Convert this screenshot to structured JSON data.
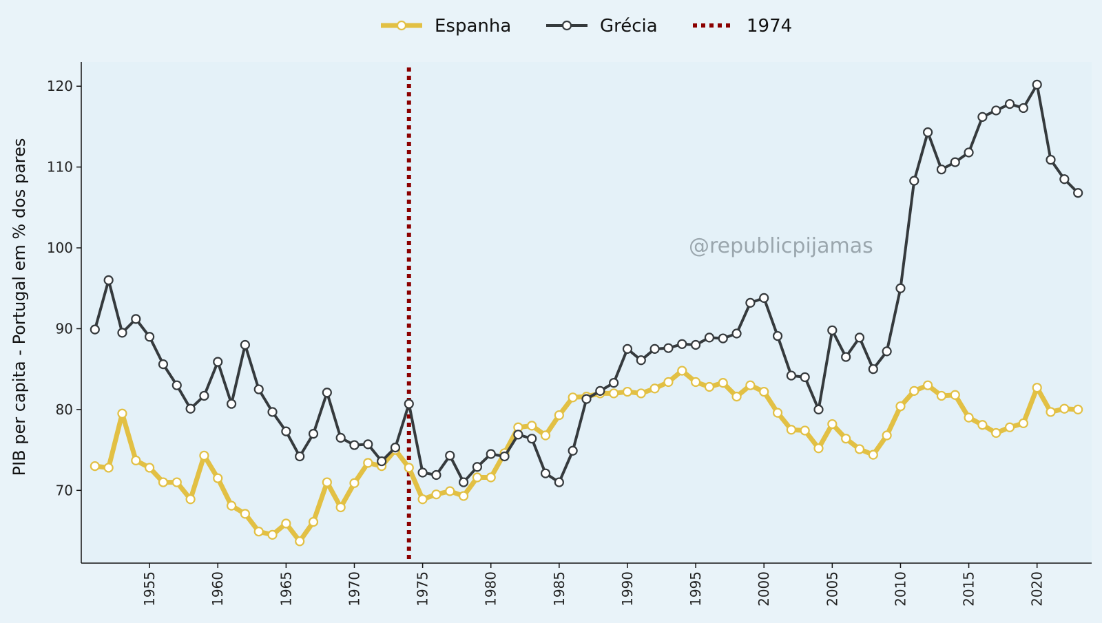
{
  "colors": {
    "page_background": "#e9f3f9",
    "plot_background": "#e4f1f8",
    "espanha": "#e2c044",
    "grecia": "#353a3d",
    "vline": "#8b0000"
  },
  "watermark": "@republicpijamas",
  "chart_data": {
    "type": "line",
    "title": "",
    "xlabel": "",
    "ylabel": "PIB per capita - Portugal em % dos pares",
    "xlim": [
      1950,
      2024
    ],
    "ylim": [
      61,
      123
    ],
    "x_ticks": [
      1955,
      1960,
      1965,
      1970,
      1975,
      1980,
      1985,
      1990,
      1995,
      2000,
      2005,
      2010,
      2015,
      2020
    ],
    "y_ticks": [
      70,
      80,
      90,
      100,
      110,
      120
    ],
    "grid": false,
    "legend_position": "top-center",
    "x": [
      1951,
      1952,
      1953,
      1954,
      1955,
      1956,
      1957,
      1958,
      1959,
      1960,
      1961,
      1962,
      1963,
      1964,
      1965,
      1966,
      1967,
      1968,
      1969,
      1970,
      1971,
      1972,
      1973,
      1974,
      1975,
      1976,
      1977,
      1978,
      1979,
      1980,
      1981,
      1982,
      1983,
      1984,
      1985,
      1986,
      1987,
      1988,
      1989,
      1990,
      1991,
      1992,
      1993,
      1994,
      1995,
      1996,
      1997,
      1998,
      1999,
      2000,
      2001,
      2002,
      2003,
      2004,
      2005,
      2006,
      2007,
      2008,
      2009,
      2010,
      2011,
      2012,
      2013,
      2014,
      2015,
      2016,
      2017,
      2018,
      2019,
      2020,
      2021,
      2022,
      2023
    ],
    "series": [
      {
        "name": "Espanha",
        "values": [
          73.0,
          72.8,
          79.5,
          73.7,
          72.8,
          71.0,
          71.0,
          68.9,
          74.3,
          71.5,
          68.1,
          67.1,
          64.9,
          64.5,
          65.9,
          63.7,
          66.1,
          71.0,
          67.9,
          70.9,
          73.4,
          73.0,
          75.0,
          72.8,
          68.9,
          69.5,
          69.9,
          69.3,
          71.6,
          71.6,
          74.6,
          77.8,
          78.0,
          76.8,
          79.3,
          81.5,
          81.6,
          82.0,
          82.0,
          82.2,
          82.0,
          82.6,
          83.4,
          84.8,
          83.4,
          82.8,
          83.3,
          81.6,
          83.0,
          82.2,
          79.6,
          77.5,
          77.4,
          75.2,
          78.2,
          76.4,
          75.1,
          74.4,
          76.8,
          80.4,
          82.3,
          83.0,
          81.7,
          81.8,
          79.0,
          78.1,
          77.1,
          77.8,
          78.3,
          82.7,
          79.7,
          80.1,
          80.0
        ]
      },
      {
        "name": "Grécia",
        "values": [
          89.9,
          96.0,
          89.5,
          91.2,
          89.0,
          85.6,
          83.0,
          80.1,
          81.7,
          85.9,
          80.7,
          88.0,
          82.5,
          79.7,
          77.3,
          74.2,
          77.0,
          82.1,
          76.5,
          75.6,
          75.7,
          73.6,
          75.3,
          80.7,
          72.2,
          71.9,
          74.3,
          71.0,
          72.9,
          74.5,
          74.2,
          76.9,
          76.4,
          72.1,
          71.0,
          74.9,
          81.3,
          82.3,
          83.3,
          87.5,
          86.1,
          87.5,
          87.6,
          88.1,
          88.0,
          88.9,
          88.8,
          89.4,
          93.2,
          93.8,
          89.1,
          84.2,
          84.0,
          80.0,
          89.8,
          86.5,
          88.9,
          85.0,
          87.2,
          95.0,
          108.3,
          114.3,
          109.7,
          110.6,
          111.8,
          116.2,
          117.0,
          117.8,
          117.3,
          120.2,
          110.9,
          108.5,
          106.8
        ]
      }
    ],
    "vline": {
      "x": 1974,
      "label": "1974"
    }
  }
}
